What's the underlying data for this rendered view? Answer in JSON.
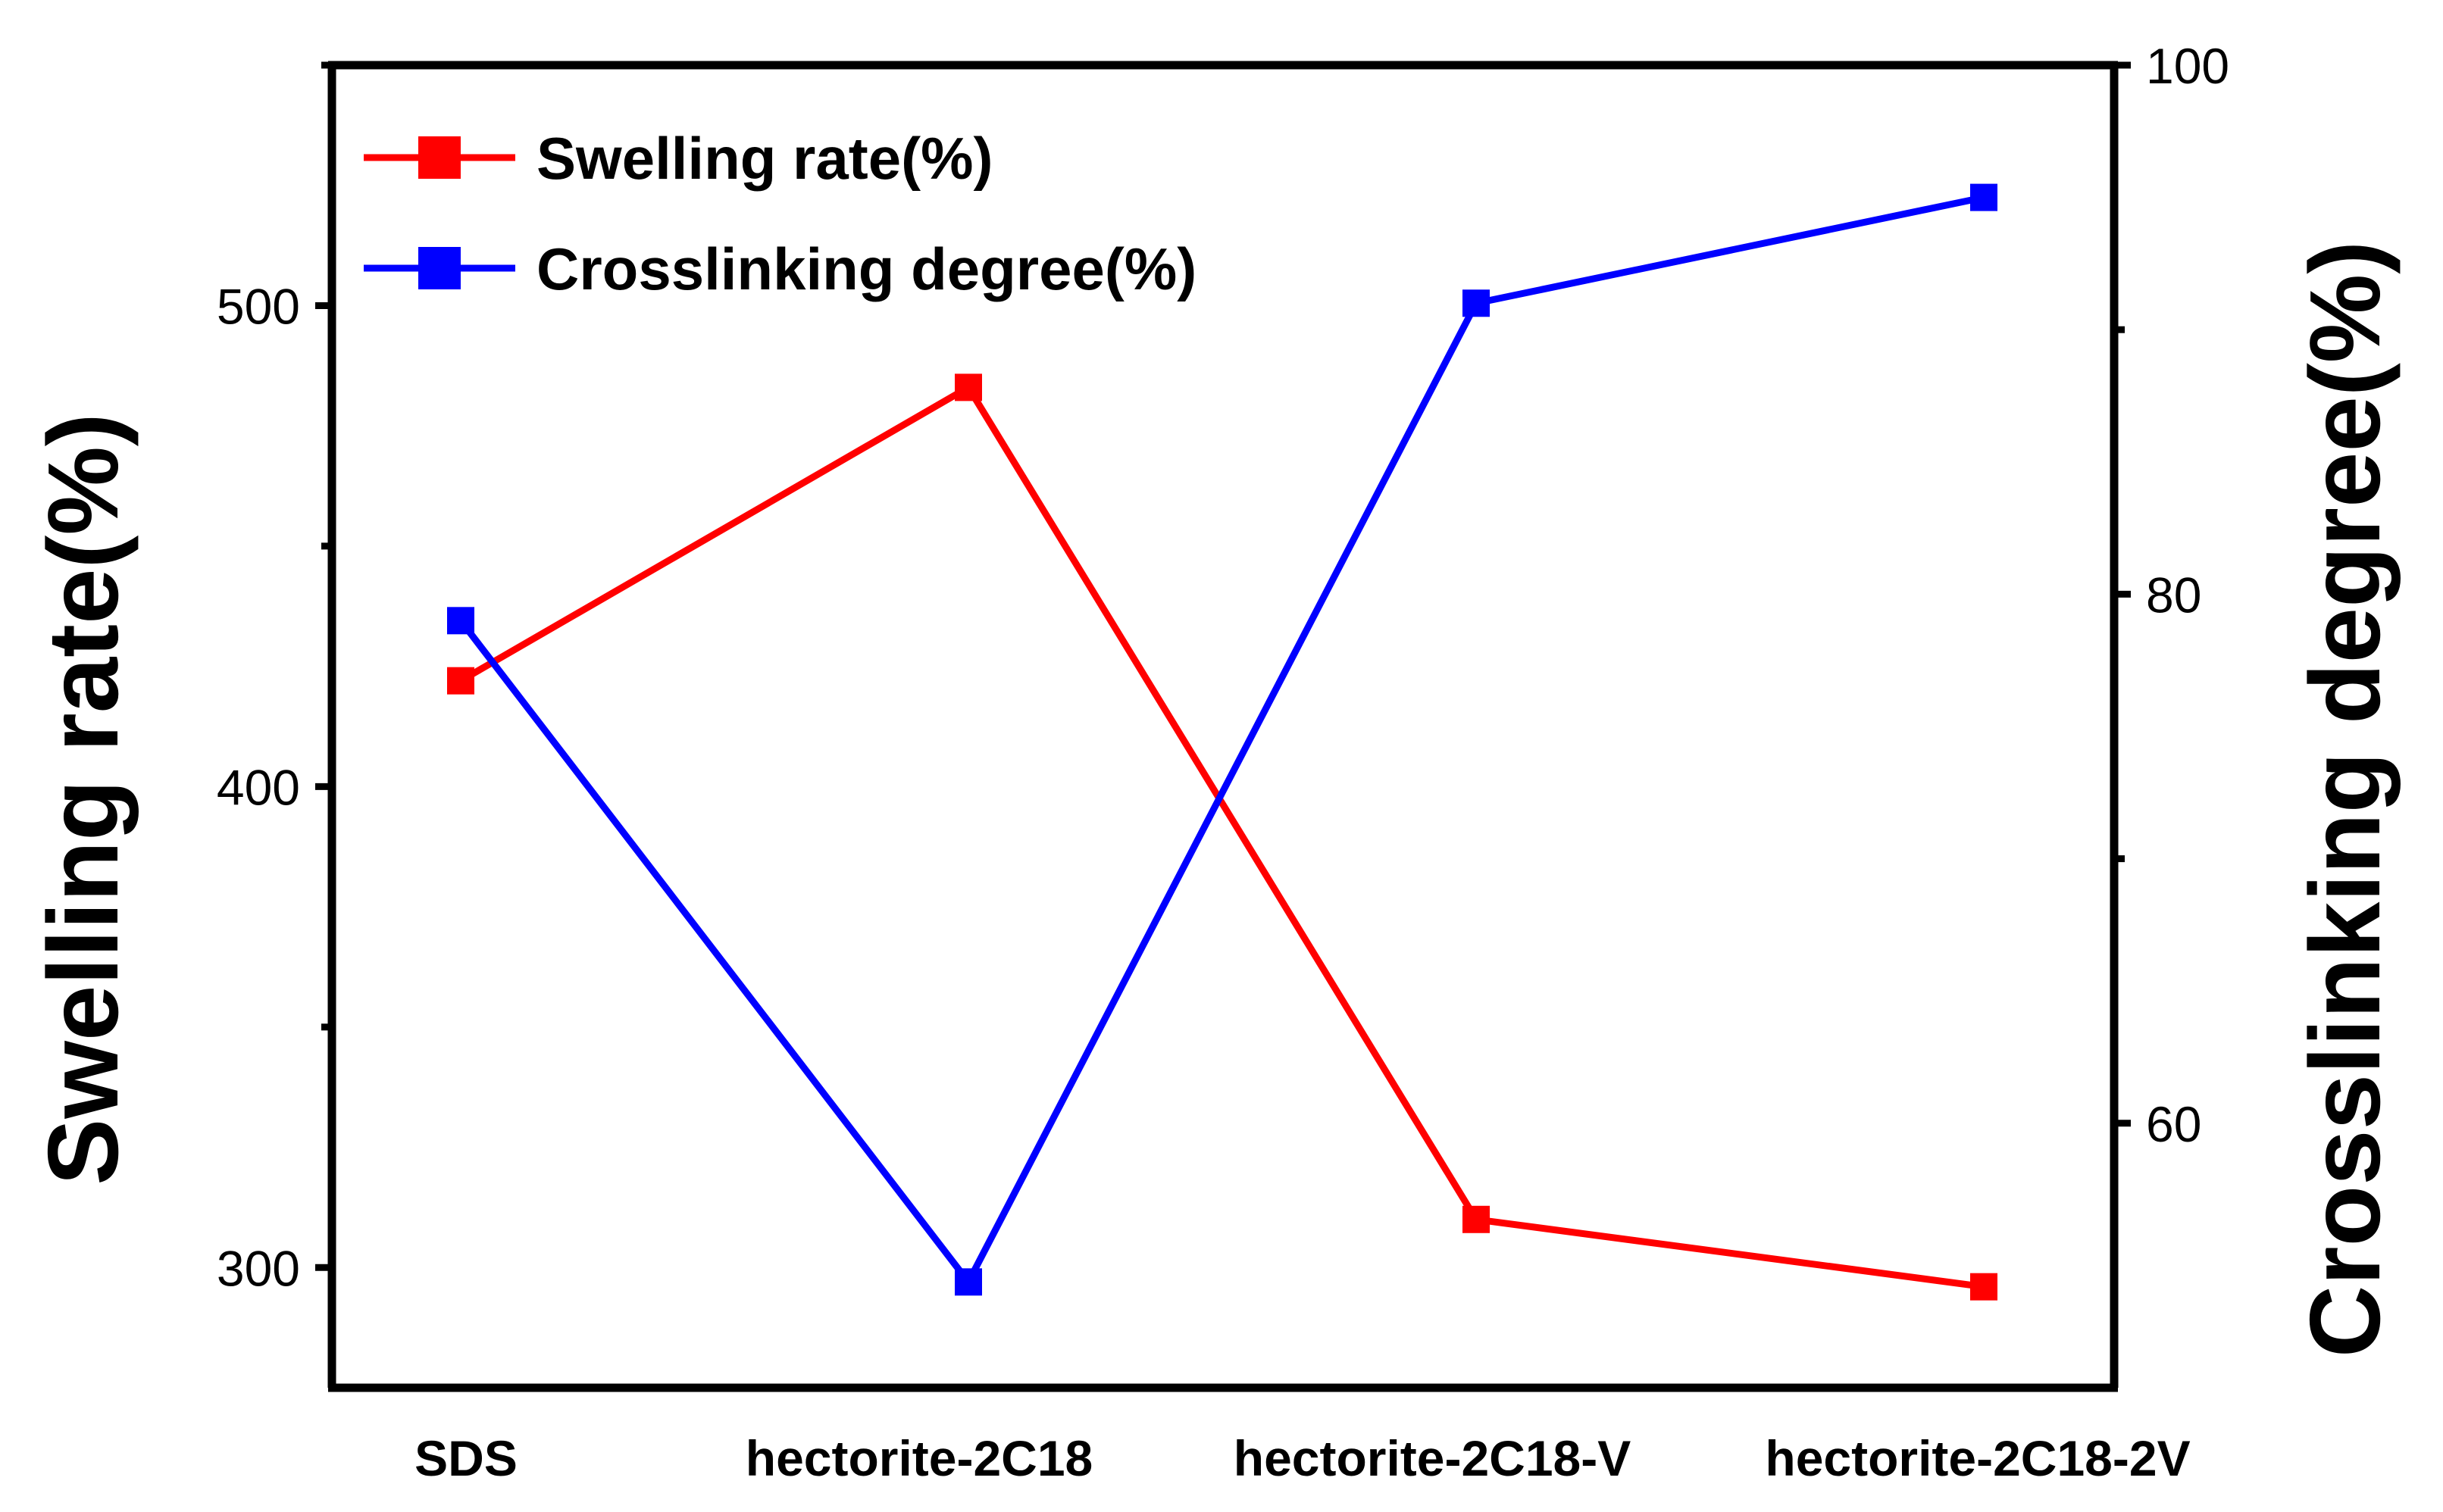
{
  "chart_data": {
    "type": "line",
    "categories": [
      "SDS",
      "hectorite-2C18",
      "hectorite-2C18-V",
      "hectorite-2C18-2V"
    ],
    "series": [
      {
        "name": "Swelling rate(%)",
        "axis": "left",
        "color": "#ff0000",
        "marker": "square",
        "values": [
          422,
          483,
          310,
          296
        ]
      },
      {
        "name": "Crosslinking degree(%)",
        "axis": "right",
        "color": "#0000ff",
        "marker": "square",
        "values": [
          79,
          54,
          91,
          95
        ]
      }
    ],
    "ylabel_left": "Swelling rate(%)",
    "ylabel_right": "Crosslinking degree(%)",
    "ylim_left": [
      275,
      550
    ],
    "ylim_right": [
      50,
      100
    ],
    "yticks_left": [
      300,
      400,
      500
    ],
    "yticks_right": [
      60,
      80,
      100
    ],
    "legend_position": "top-left",
    "grid": false
  }
}
